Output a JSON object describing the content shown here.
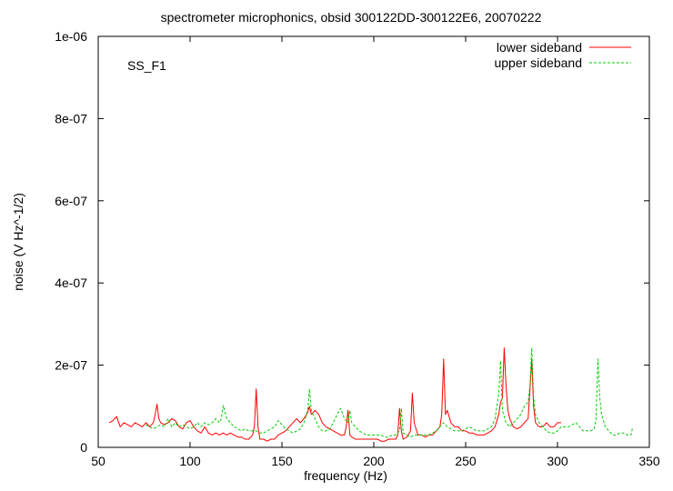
{
  "chart_data": {
    "type": "line",
    "title": "spectrometer microphonics, obsid 300122DD-300122E6, 20070222",
    "annotation": "SS_F1",
    "xlabel": "frequency (Hz)",
    "ylabel": "noise (V Hz^-1/2)",
    "xlim": [
      50,
      350
    ],
    "ylim": [
      0,
      1e-06
    ],
    "x_ticks": [
      50,
      100,
      150,
      200,
      250,
      300,
      350
    ],
    "x_tick_labels": [
      "50",
      "100",
      "150",
      "200",
      "250",
      "300",
      "350"
    ],
    "y_ticks": [
      0,
      2e-07,
      4e-07,
      6e-07,
      8e-07,
      1e-06
    ],
    "y_tick_labels": [
      "0",
      "2e-07",
      "4e-07",
      "6e-07",
      "8e-07",
      "1e-06"
    ],
    "grid": false,
    "legend_position": "top-right",
    "series": [
      {
        "name": "lower sideband",
        "color": "#ff0000",
        "dash": "solid",
        "x": [
          56,
          58,
          60,
          62,
          64,
          66,
          68,
          70,
          72,
          74,
          76,
          78,
          80,
          81,
          82,
          83,
          84,
          86,
          88,
          90,
          92,
          94,
          96,
          98,
          100,
          102,
          104,
          106,
          108,
          110,
          112,
          114,
          116,
          118,
          120,
          122,
          124,
          126,
          128,
          130,
          132,
          134,
          135,
          136,
          137,
          138,
          140,
          142,
          144,
          146,
          148,
          150,
          152,
          154,
          156,
          158,
          160,
          162,
          164,
          165,
          166,
          168,
          170,
          172,
          174,
          176,
          178,
          180,
          182,
          184,
          185,
          186,
          187,
          188,
          190,
          192,
          194,
          196,
          198,
          200,
          202,
          204,
          206,
          208,
          210,
          212,
          213,
          214,
          215,
          216,
          218,
          220,
          221,
          222,
          224,
          226,
          228,
          230,
          232,
          234,
          236,
          237,
          238,
          239,
          240,
          242,
          244,
          246,
          248,
          250,
          252,
          254,
          256,
          258,
          260,
          262,
          264,
          266,
          268,
          269,
          270,
          271,
          272,
          273,
          274,
          276,
          278,
          280,
          282,
          284,
          285,
          286,
          287,
          288,
          290,
          292,
          294,
          296,
          298,
          300,
          302
        ],
        "y": [
          6e-08,
          6.5e-08,
          7.5e-08,
          5e-08,
          6e-08,
          5.5e-08,
          5e-08,
          6e-08,
          5.5e-08,
          5e-08,
          6e-08,
          5e-08,
          6e-08,
          8e-08,
          1.05e-07,
          7e-08,
          6e-08,
          5.5e-08,
          6e-08,
          7e-08,
          6.5e-08,
          5e-08,
          4.5e-08,
          6e-08,
          6.5e-08,
          5e-08,
          4e-08,
          3.5e-08,
          5e-08,
          3.5e-08,
          3e-08,
          3.5e-08,
          3e-08,
          3.5e-08,
          3e-08,
          3.5e-08,
          3e-08,
          2.5e-08,
          2.5e-08,
          2e-08,
          2e-08,
          3e-08,
          5e-08,
          1.42e-07,
          5e-08,
          2e-08,
          2e-08,
          1.5e-08,
          2e-08,
          2e-08,
          3e-08,
          3.5e-08,
          4e-08,
          5e-08,
          6e-08,
          7e-08,
          6e-08,
          7e-08,
          8.5e-08,
          1e-07,
          8e-08,
          9e-08,
          8e-08,
          6e-08,
          5e-08,
          4.5e-08,
          4e-08,
          3.5e-08,
          3e-08,
          3e-08,
          5e-08,
          9e-08,
          3e-08,
          2.5e-08,
          2e-08,
          2e-08,
          2e-08,
          2e-08,
          2e-08,
          2e-08,
          2e-08,
          1.5e-08,
          1.5e-08,
          2e-08,
          2e-08,
          2e-08,
          3e-08,
          9.5e-08,
          4e-08,
          2e-08,
          2.5e-08,
          4e-08,
          1.32e-07,
          6e-08,
          3e-08,
          3e-08,
          2.5e-08,
          3e-08,
          3e-08,
          4e-08,
          5e-08,
          8e-08,
          2.15e-07,
          8e-08,
          9e-08,
          6e-08,
          5e-08,
          5e-08,
          4e-08,
          4e-08,
          3.5e-08,
          3.5e-08,
          3e-08,
          3e-08,
          3e-08,
          3.5e-08,
          4e-08,
          5e-08,
          8e-08,
          1.1e-07,
          1.2e-07,
          2.42e-07,
          1.5e-07,
          9e-08,
          7e-08,
          5e-08,
          4.5e-08,
          5e-08,
          6e-08,
          7e-08,
          1.4e-07,
          2.15e-07,
          1e-07,
          6e-08,
          5e-08,
          5e-08,
          6e-08,
          5e-08,
          5e-08,
          6e-08,
          6e-08
        ]
      },
      {
        "name": "upper sideband",
        "color": "#00cc00",
        "dash": "dashed",
        "x": [
          76,
          78,
          80,
          82,
          84,
          86,
          88,
          90,
          92,
          94,
          96,
          98,
          100,
          102,
          104,
          106,
          108,
          110,
          112,
          114,
          116,
          117,
          118,
          120,
          122,
          124,
          126,
          128,
          130,
          132,
          134,
          136,
          138,
          140,
          142,
          144,
          146,
          148,
          150,
          152,
          154,
          156,
          158,
          160,
          162,
          164,
          165,
          166,
          168,
          170,
          172,
          174,
          176,
          178,
          180,
          182,
          184,
          186,
          187,
          188,
          190,
          192,
          194,
          196,
          198,
          200,
          202,
          204,
          206,
          208,
          210,
          212,
          214,
          215,
          216,
          218,
          220,
          222,
          224,
          226,
          228,
          230,
          232,
          234,
          236,
          238,
          240,
          242,
          244,
          246,
          248,
          250,
          252,
          254,
          256,
          258,
          260,
          262,
          264,
          266,
          267,
          268,
          269,
          270,
          272,
          274,
          276,
          278,
          280,
          282,
          284,
          285,
          286,
          287,
          288,
          290,
          292,
          294,
          296,
          298,
          300,
          302,
          304,
          306,
          308,
          310,
          312,
          314,
          316,
          318,
          320,
          321,
          322,
          323,
          324,
          326,
          328,
          330,
          332,
          334,
          336,
          338,
          340,
          341
        ],
        "y": [
          5.5e-08,
          5e-08,
          4.5e-08,
          5e-08,
          5.5e-08,
          5e-08,
          7e-08,
          5e-08,
          6e-08,
          5e-08,
          5.5e-08,
          5e-08,
          4.5e-08,
          5e-08,
          6e-08,
          5e-08,
          6e-08,
          5.5e-08,
          6e-08,
          7e-08,
          6e-08,
          7e-08,
          1.02e-07,
          7e-08,
          6e-08,
          5e-08,
          4.5e-08,
          4e-08,
          4.5e-08,
          4e-08,
          4e-08,
          4e-08,
          3.5e-08,
          3.5e-08,
          4e-08,
          4.5e-08,
          5e-08,
          6.5e-08,
          5.5e-08,
          4.5e-08,
          4e-08,
          3.5e-08,
          4e-08,
          4.5e-08,
          6e-08,
          9e-08,
          1.42e-07,
          9e-08,
          7e-08,
          5e-08,
          4e-08,
          4e-08,
          4.5e-08,
          6e-08,
          8e-08,
          9.5e-08,
          7e-08,
          6e-08,
          9e-08,
          6e-08,
          5e-08,
          4e-08,
          3.5e-08,
          3e-08,
          3e-08,
          3e-08,
          3e-08,
          3e-08,
          2.5e-08,
          2.5e-08,
          3e-08,
          3e-08,
          4e-08,
          9.5e-08,
          3.5e-08,
          3e-08,
          2.5e-08,
          3e-08,
          3e-08,
          3e-08,
          3e-08,
          3e-08,
          3.5e-08,
          4e-08,
          5e-08,
          6e-08,
          5e-08,
          4.5e-08,
          4e-08,
          4e-08,
          4e-08,
          4.5e-08,
          5e-08,
          4.5e-08,
          4e-08,
          4e-08,
          4e-08,
          4.5e-08,
          5e-08,
          7e-08,
          1e-07,
          1.3e-07,
          2.1e-07,
          9e-08,
          6e-08,
          5e-08,
          6e-08,
          7e-08,
          8e-08,
          1e-07,
          1.1e-07,
          1.5e-07,
          2.42e-07,
          1.2e-07,
          8e-08,
          6e-08,
          5e-08,
          4e-08,
          3.5e-08,
          3.5e-08,
          4e-08,
          5e-08,
          5e-08,
          5e-08,
          5.5e-08,
          6e-08,
          5e-08,
          4e-08,
          4e-08,
          4e-08,
          4.5e-08,
          7e-08,
          2.15e-07,
          1.2e-07,
          8e-08,
          5e-08,
          4e-08,
          3e-08,
          3e-08,
          3.5e-08,
          3.5e-08,
          3e-08,
          3e-08,
          5e-08
        ]
      }
    ]
  }
}
